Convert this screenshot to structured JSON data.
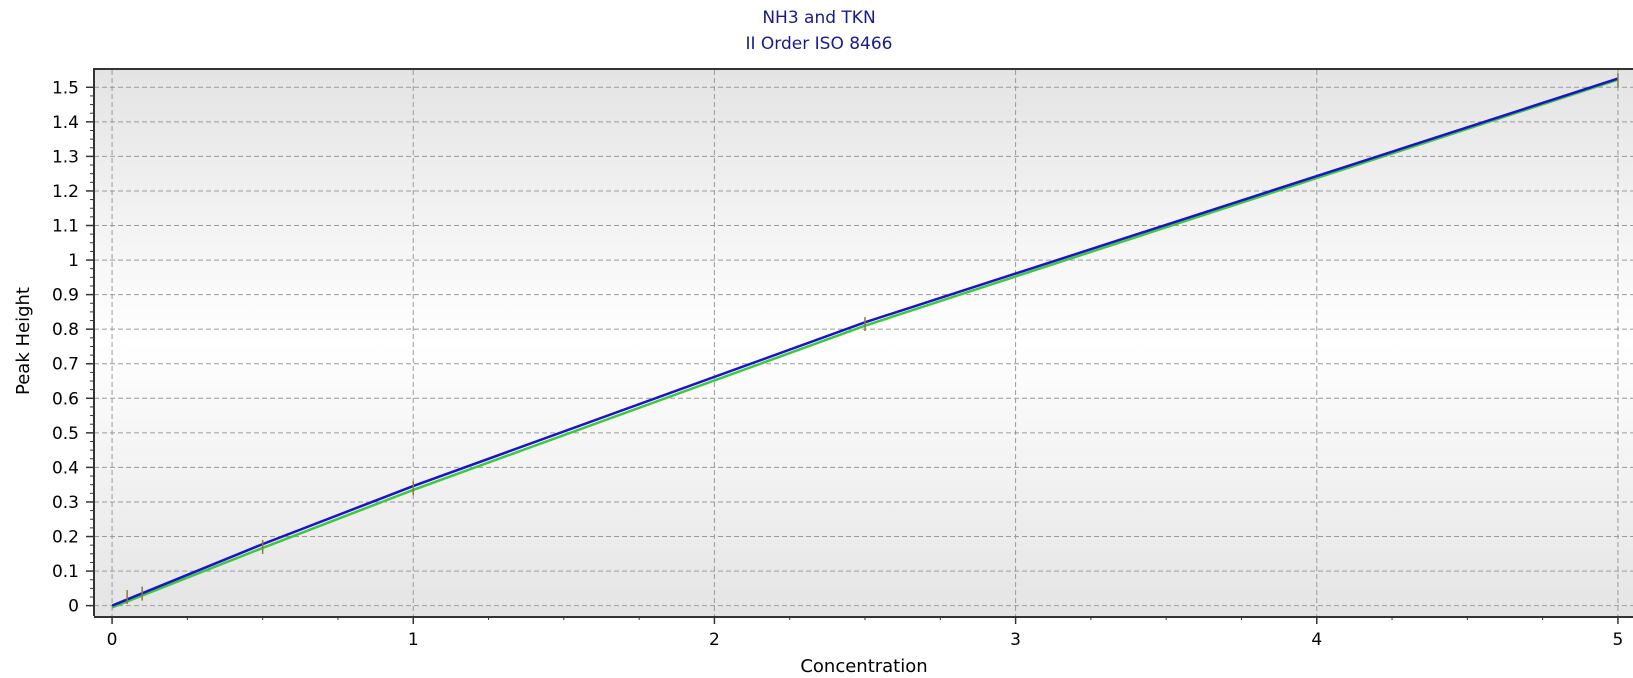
{
  "chart_data": {
    "type": "line",
    "title": "NH3 and TKN",
    "subtitle": "II Order ISO 8466",
    "xlabel": "Concentration",
    "ylabel": "Peak Height",
    "xlim": [
      -0.06,
      5.05
    ],
    "ylim": [
      -0.03,
      1.55
    ],
    "x_ticks": [
      0,
      1,
      2,
      3,
      4,
      5
    ],
    "y_ticks": [
      0,
      0.1,
      0.2,
      0.3,
      0.4,
      0.5,
      0.6,
      0.7,
      0.8,
      0.9,
      1,
      1.1,
      1.2,
      1.3,
      1.4,
      1.5
    ],
    "grid": true,
    "legend": "none",
    "series": [
      {
        "color": "#3ec83e",
        "x": [
          0,
          0.5,
          1,
          2.5,
          5
        ],
        "y": [
          -0.005,
          0.167,
          0.335,
          0.81,
          1.522
        ]
      },
      {
        "color": "#1a14c8",
        "x": [
          0,
          0.5,
          1,
          2.5,
          5
        ],
        "y": [
          0.0,
          0.178,
          0.346,
          0.82,
          1.525
        ]
      }
    ],
    "points": {
      "color": "#8a7a3a",
      "x": [
        0.05,
        0.1,
        0.5,
        1,
        2.5,
        5
      ],
      "y": [
        0.025,
        0.035,
        0.17,
        0.34,
        0.815,
        1.52
      ]
    },
    "colors": {
      "title": "#1a1a8c",
      "grid": "#9a9a9a",
      "axis": "#333333"
    }
  }
}
